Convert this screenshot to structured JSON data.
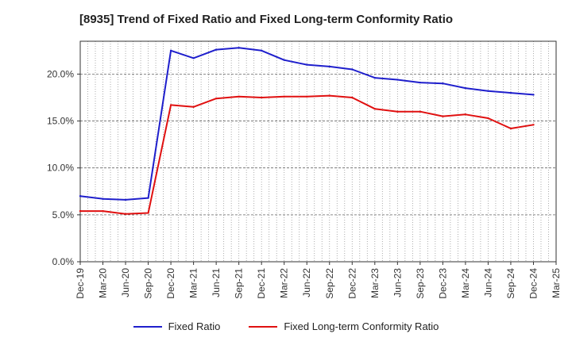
{
  "title": "[8935]  Trend of Fixed Ratio and Fixed Long-term Conformity Ratio",
  "chart_data": {
    "type": "line",
    "title": "[8935]  Trend of Fixed Ratio and Fixed Long-term Conformity Ratio",
    "categories": [
      "Dec-19",
      "Mar-20",
      "Jun-20",
      "Sep-20",
      "Dec-20",
      "Mar-21",
      "Jun-21",
      "Sep-21",
      "Dec-21",
      "Mar-22",
      "Jun-22",
      "Sep-22",
      "Dec-22",
      "Mar-23",
      "Jun-23",
      "Sep-23",
      "Dec-23",
      "Mar-24",
      "Jun-24",
      "Sep-24",
      "Dec-24",
      "Mar-25"
    ],
    "series": [
      {
        "name": "Fixed Ratio",
        "color": "#1f1fcc",
        "values": [
          7.0,
          6.7,
          6.6,
          6.8,
          22.5,
          21.7,
          22.6,
          22.8,
          22.5,
          21.5,
          21.0,
          20.8,
          20.5,
          19.6,
          19.4,
          19.1,
          19.0,
          18.5,
          18.2,
          18.0,
          17.8,
          null
        ]
      },
      {
        "name": "Fixed Long-term Conformity Ratio",
        "color": "#e01010",
        "values": [
          5.4,
          5.4,
          5.1,
          5.2,
          16.7,
          16.5,
          17.4,
          17.6,
          17.5,
          17.6,
          17.6,
          17.7,
          17.5,
          16.3,
          16.0,
          16.0,
          15.5,
          15.7,
          15.3,
          14.2,
          14.6,
          null
        ]
      }
    ],
    "yticks": [
      "0.0%",
      "5.0%",
      "10.0%",
      "15.0%",
      "20.0%"
    ],
    "ylim": [
      0,
      23.5
    ],
    "grid": true,
    "legend": "bottom"
  }
}
